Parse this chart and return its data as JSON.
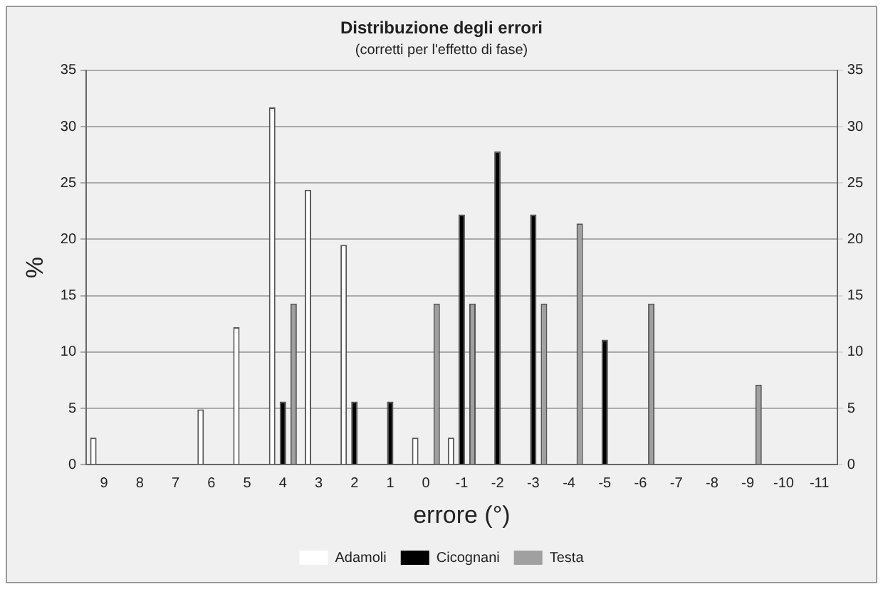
{
  "chart_data": {
    "type": "bar",
    "title": "Distribuzione degli errori",
    "subtitle": "(corretti per l'effetto di fase)",
    "xlabel": "errore (°)",
    "ylabel": "%",
    "categories": [
      "9",
      "8",
      "7",
      "6",
      "5",
      "4",
      "3",
      "2",
      "1",
      "0",
      "-1",
      "-2",
      "-3",
      "-4",
      "-5",
      "-6",
      "-7",
      "-8",
      "-9",
      "-10",
      "-11"
    ],
    "series": [
      {
        "name": "Adamoli",
        "color": "#ffffff",
        "values": [
          2.4,
          null,
          null,
          4.9,
          12.2,
          31.7,
          24.4,
          19.5,
          null,
          2.4,
          2.4,
          null,
          null,
          null,
          null,
          null,
          null,
          null,
          null,
          null,
          null
        ]
      },
      {
        "name": "Cicognani",
        "color": "#000000",
        "values": [
          null,
          null,
          null,
          null,
          null,
          5.6,
          null,
          5.6,
          5.6,
          null,
          22.2,
          27.8,
          22.2,
          null,
          11.1,
          null,
          null,
          null,
          null,
          null,
          null
        ]
      },
      {
        "name": "Testa",
        "color": "#a0a0a0",
        "values": [
          null,
          null,
          null,
          null,
          null,
          14.3,
          null,
          null,
          null,
          14.3,
          14.3,
          null,
          14.3,
          21.4,
          null,
          14.3,
          null,
          null,
          7.1,
          null,
          null
        ]
      }
    ],
    "ylim": [
      0,
      35
    ],
    "yticks": [
      0,
      5,
      10,
      15,
      20,
      25,
      30,
      35
    ],
    "y2lim": [
      0,
      35
    ],
    "y2ticks": [
      0,
      5,
      10,
      15,
      20,
      25,
      30,
      35
    ],
    "grid": "y",
    "legend": "bottom"
  }
}
